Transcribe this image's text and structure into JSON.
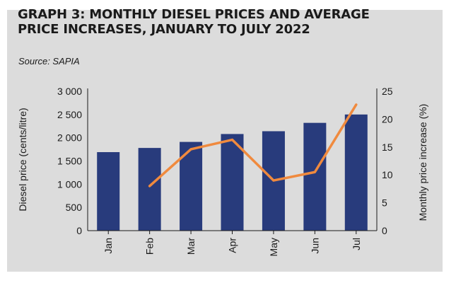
{
  "header": {
    "title": "GRAPH 3: MONTHLY DIESEL PRICES AND AVERAGE PRICE INCREASES, JANUARY TO JULY 2022",
    "source": "Source: SAPIA"
  },
  "colors": {
    "panel": "#dcdcdc",
    "bar": "#283b7c",
    "line": "#f08a3e",
    "axis": "#1a1a1a"
  },
  "chart_data": {
    "type": "bar",
    "title": "GRAPH 3: MONTHLY DIESEL PRICES AND AVERAGE PRICE INCREASES, JANUARY TO JULY 2022",
    "categories": [
      "Jan",
      "Feb",
      "Mar",
      "Apr",
      "May",
      "Jun",
      "Jul"
    ],
    "ylabel": "Diesel price (cents/litre)",
    "y2label": "Monthly price increase (%)",
    "ylim": [
      0,
      3000
    ],
    "y2lim": [
      0,
      25
    ],
    "yticks": [
      0,
      500,
      1000,
      1500,
      2000,
      2500,
      3000
    ],
    "yticklabels": [
      "0",
      "500",
      "1 000",
      "1 500",
      "2 000",
      "2 500",
      "3 000"
    ],
    "y2ticks": [
      0,
      5,
      10,
      15,
      20,
      25
    ],
    "grid": false,
    "legend": "none",
    "series": [
      {
        "type": "bar",
        "axis": "left",
        "values": [
          1690,
          1780,
          1910,
          2080,
          2140,
          2320,
          2500
        ]
      },
      {
        "type": "line",
        "axis": "right",
        "values": [
          null,
          8,
          14.6,
          16.3,
          9,
          10.5,
          22.6
        ]
      }
    ]
  }
}
